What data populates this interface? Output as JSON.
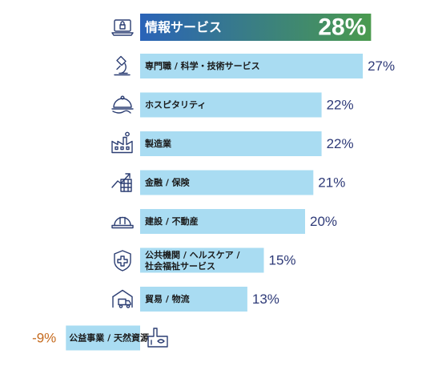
{
  "chart_data": {
    "type": "bar",
    "orientation": "horizontal",
    "colors": {
      "bar": "#a9dcf2",
      "highlight_start": "#2a63b8",
      "highlight_end": "#4a9a4e",
      "positive_value": "#2e3a78",
      "negative_value": "#c56a1d",
      "icon": "#2c3e73"
    },
    "rows": [
      {
        "label": "情報サービス",
        "value": 28,
        "value_label": "28%",
        "icon": "laptop-lock-icon",
        "highlight": true
      },
      {
        "label": "専門職 / 科学・技術サービス",
        "value": 27,
        "value_label": "27%",
        "icon": "microscope-icon"
      },
      {
        "label": "ホスピタリティ",
        "value": 22,
        "value_label": "22%",
        "icon": "food-cloche-icon"
      },
      {
        "label": "製造業",
        "value": 22,
        "value_label": "22%",
        "icon": "factory-icon"
      },
      {
        "label": "金融 / 保険",
        "value": 21,
        "value_label": "21%",
        "icon": "growth-chart-icon"
      },
      {
        "label": "建設 / 不動産",
        "value": 20,
        "value_label": "20%",
        "icon": "hard-hat-icon"
      },
      {
        "label": [
          "公共機関 / ヘルスケア /",
          "社会福祉サービス"
        ],
        "value": 15,
        "value_label": "15%",
        "icon": "medical-shield-icon"
      },
      {
        "label": "貿易 / 物流",
        "value": 13,
        "value_label": "13%",
        "icon": "warehouse-truck-icon"
      },
      {
        "label": "公益事業 / 天然資源",
        "value": -9,
        "value_label": "-9%",
        "icon": "energy-plant-icon"
      }
    ]
  }
}
